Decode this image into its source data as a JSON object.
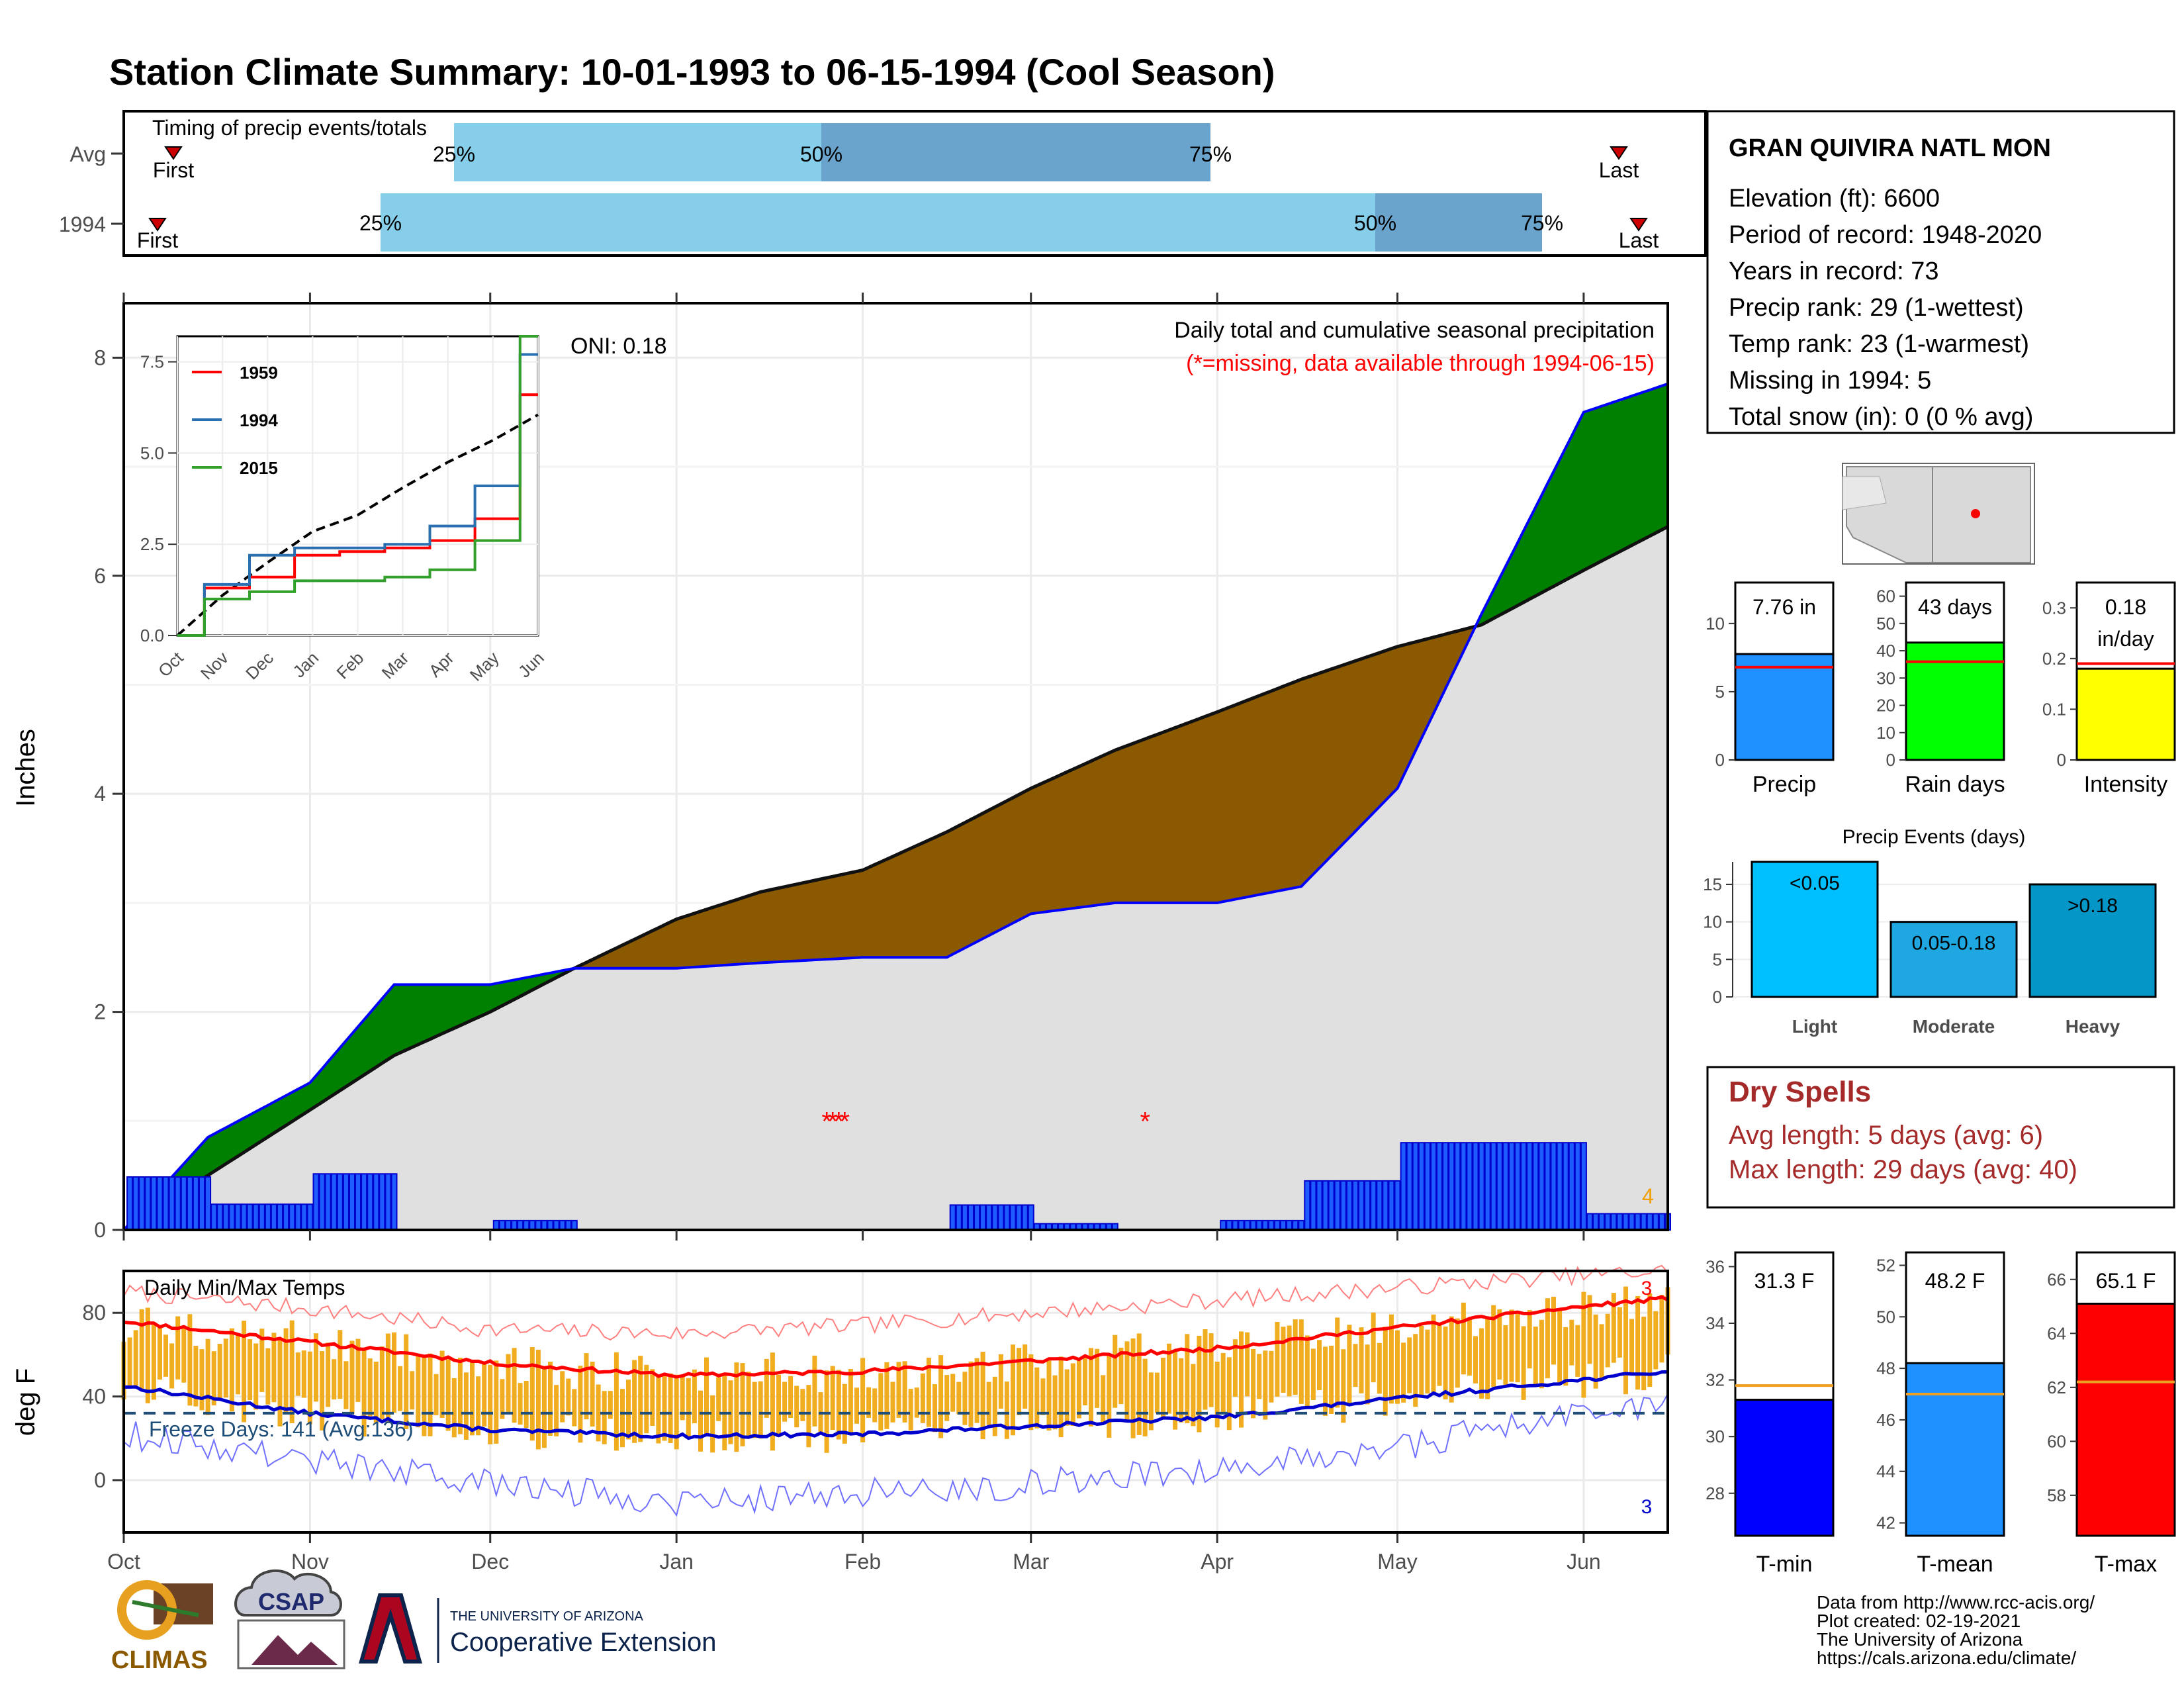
{
  "title": "Station Climate Summary: 10-01-1993 to 06-15-1994 (Cool Season)",
  "colors": {
    "title": "#253c80",
    "light_blue": "#87ceeb",
    "steel_blue": "#6aa4cc",
    "green": "#008000",
    "brown": "#8b5a00",
    "blue": "#0000ff",
    "red": "#ff0000",
    "orange": "#f0ad20",
    "gray": "#e0e0e0",
    "dry_red": "#a52a2a",
    "freeze": "#1f4e79"
  },
  "timing": {
    "label": "Timing of precip events/totals",
    "rows": [
      {
        "name": "Avg",
        "first": "First",
        "last": "Last",
        "p25": "25%",
        "p50": "50%",
        "p75": "75%"
      },
      {
        "name": "1994",
        "first": "First",
        "last": "Last",
        "p25": "25%",
        "p50": "50%",
        "p75": "75%"
      }
    ]
  },
  "main": {
    "ylabel": "Inches",
    "oni": "ONI: 0.18",
    "subtitle": "Daily total and cumulative seasonal precipitation",
    "missing_note": "(*=missing, data available through 1994-06-15)",
    "corner_count": "4",
    "months": [
      "Oct",
      "Nov",
      "Dec",
      "Jan",
      "Feb",
      "Mar",
      "Apr",
      "May",
      "Jun"
    ]
  },
  "temps": {
    "label": "Daily Min/Max Temps",
    "ylabel": "deg F",
    "freeze": "Freeze Days: 141 (Avg:136)",
    "count_max": "3",
    "count_min": "3"
  },
  "station": {
    "name": "GRAN QUIVIRA NATL MON",
    "lines": [
      "Elevation (ft): 6600",
      "Period of record: 1948-2020",
      "Years in record: 73",
      "Precip rank: 29 (1-wettest)",
      "Temp rank: 23 (1-warmest)",
      "Missing in 1994: 5",
      "Total snow (in): 0 (0 % avg)"
    ]
  },
  "summary_bars": [
    {
      "label": "Precip",
      "value_text": "7.76 in",
      "value": 7.76,
      "avg": 6.8,
      "ymax": 13,
      "ticks": [
        0,
        5,
        10
      ],
      "color": "#1e90ff"
    },
    {
      "label": "Rain days",
      "value_text": "43 days",
      "value": 43,
      "avg": 36,
      "ymax": 65,
      "ticks": [
        0,
        10,
        20,
        30,
        40,
        50,
        60
      ],
      "color": "#00ff00"
    },
    {
      "label": "Intensity",
      "value_text": "0.18",
      "value_text2": "in/day",
      "value": 0.18,
      "avg": 0.19,
      "ymax": 0.35,
      "ticks": [
        0.0,
        0.1,
        0.2,
        0.3
      ],
      "color": "#ffff00"
    }
  ],
  "events": {
    "title": "Precip Events (days)",
    "ymax": 18,
    "ticks": [
      0,
      5,
      10,
      15
    ],
    "bars": [
      {
        "category": "Light",
        "label": "<0.05",
        "value": 18,
        "color": "#00bfff"
      },
      {
        "category": "Moderate",
        "label": "0.05-0.18",
        "value": 10,
        "color": "#1ea7e0"
      },
      {
        "category": "Heavy",
        "label": ">0.18",
        "value": 15,
        "color": "#0596c8"
      }
    ]
  },
  "dry_spells": {
    "title": "Dry Spells",
    "avg": "Avg length: 5 days (avg: 6)",
    "max": "Max length: 29 days (avg: 40)"
  },
  "temp_bars": [
    {
      "label": "T-min",
      "value_text": "31.3 F",
      "value": 31.3,
      "avg": 31.8,
      "ymin": 26.5,
      "ymax": 36.5,
      "ticks": [
        28,
        30,
        32,
        34,
        36
      ],
      "color": "#0000ff"
    },
    {
      "label": "T-mean",
      "value_text": "48.2 F",
      "value": 48.2,
      "avg": 47.0,
      "ymin": 41.5,
      "ymax": 52.5,
      "ticks": [
        42,
        44,
        46,
        48,
        50,
        52
      ],
      "color": "#1e90ff"
    },
    {
      "label": "T-max",
      "value_text": "65.1 F",
      "value": 65.1,
      "avg": 62.2,
      "ymin": 56.5,
      "ymax": 67,
      "ticks": [
        58,
        60,
        62,
        64,
        66
      ],
      "color": "#ff0000"
    }
  ],
  "credits": [
    "Data from http://www.rcc-acis.org/",
    "Plot created: 02-19-2021",
    "The University of Arizona",
    "https://cals.arizona.edu/climate/"
  ],
  "logos": {
    "climas": "CLIMAS",
    "csap": "CSAP",
    "ua_line1": "THE UNIVERSITY OF ARIZONA",
    "ua_line2": "Cooperative Extension"
  },
  "chart_data": [
    {
      "type": "area",
      "title": "Daily total and cumulative seasonal precipitation",
      "ylabel": "Inches",
      "xlim": [
        "1993-10-01",
        "1994-06-15"
      ],
      "ylim": [
        0,
        8.5
      ],
      "x": [
        "1993-10-01",
        "1993-10-15",
        "1993-11-01",
        "1993-11-15",
        "1993-12-01",
        "1993-12-15",
        "1994-01-01",
        "1994-01-15",
        "1994-02-01",
        "1994-02-15",
        "1994-03-01",
        "1994-03-15",
        "1994-04-01",
        "1994-04-15",
        "1994-05-01",
        "1994-05-15",
        "1994-06-01",
        "1994-06-15"
      ],
      "series": [
        {
          "name": "1994",
          "values": [
            0.0,
            0.85,
            1.35,
            2.25,
            2.25,
            2.4,
            2.4,
            2.45,
            2.5,
            2.5,
            2.9,
            3.0,
            3.0,
            3.15,
            4.05,
            5.65,
            7.5,
            7.76
          ]
        },
        {
          "name": "Avg",
          "values": [
            0.0,
            0.5,
            1.1,
            1.6,
            2.0,
            2.4,
            2.85,
            3.1,
            3.3,
            3.65,
            4.05,
            4.4,
            4.75,
            5.05,
            5.35,
            5.55,
            6.05,
            6.45
          ]
        }
      ],
      "missing_dates": [
        "1994-01-26",
        "1994-01-27",
        "1994-01-28",
        "1994-01-29",
        "1994-03-20"
      ]
    },
    {
      "type": "line",
      "title": "",
      "x": [
        "Oct",
        "Nov",
        "Dec",
        "Jan",
        "Feb",
        "Mar",
        "Apr",
        "May",
        "Jun"
      ],
      "ylim": [
        0,
        8.2
      ],
      "series": [
        {
          "name": "1959",
          "values": [
            0.0,
            1.3,
            1.6,
            2.2,
            2.3,
            2.4,
            2.6,
            3.2,
            6.6
          ]
        },
        {
          "name": "1994",
          "values": [
            0.0,
            1.4,
            2.2,
            2.4,
            2.4,
            2.5,
            3.0,
            4.1,
            7.7
          ]
        },
        {
          "name": "2015",
          "values": [
            0.0,
            1.0,
            1.2,
            1.5,
            1.5,
            1.6,
            1.8,
            2.6,
            8.2
          ]
        }
      ]
    },
    {
      "type": "line",
      "title": "Daily Min/Max Temps",
      "ylabel": "deg F",
      "ylim": [
        -25,
        100
      ],
      "x": [
        "1993-10-01",
        "1993-11-01",
        "1993-12-01",
        "1994-01-01",
        "1994-02-01",
        "1994-03-01",
        "1994-04-01",
        "1994-05-01",
        "1994-06-01",
        "1994-06-15"
      ],
      "series": [
        {
          "name": "Avg max",
          "values": [
            76,
            66,
            56,
            50,
            52,
            57,
            63,
            73,
            83,
            87
          ]
        },
        {
          "name": "Avg min",
          "values": [
            45,
            32,
            24,
            21,
            22,
            26,
            30,
            39,
            48,
            52
          ]
        },
        {
          "name": "Record max",
          "values": [
            90,
            82,
            72,
            70,
            74,
            80,
            86,
            92,
            98,
            100
          ]
        },
        {
          "name": "Record min",
          "values": [
            22,
            10,
            -2,
            -10,
            -6,
            -2,
            6,
            16,
            32,
            38
          ]
        }
      ],
      "freeze_line": 32
    }
  ]
}
